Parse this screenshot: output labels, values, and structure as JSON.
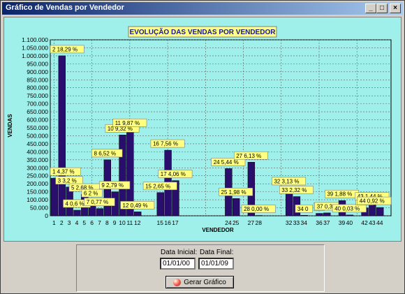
{
  "window": {
    "title": "Gráfico de Vendas por Vendedor",
    "minimize_glyph": "_",
    "maximize_glyph": "□",
    "close_glyph": "×"
  },
  "chart_data": {
    "type": "bar",
    "title": "EVOLUÇÃO DAS VENDAS POR VENDEDOR",
    "xlabel": "VENDEDOR",
    "ylabel": "VENDAS",
    "ylim": [
      0,
      1100000
    ],
    "yticks": [
      "0",
      "50.000",
      "100.000",
      "150.000",
      "200.000",
      "250.000",
      "300.000",
      "350.000",
      "400.000",
      "450.000",
      "500.000",
      "550.000",
      "600.000",
      "650.000",
      "700.000",
      "750.000",
      "800.000",
      "850.000",
      "900.000",
      "950.000",
      "1.000.000",
      "1.050.000",
      "1.100.000"
    ],
    "grid": true,
    "bar_color": "#2a0e6e",
    "label_color": "#ffff80",
    "categories": [
      "1",
      "2",
      "3",
      "4",
      "5",
      "6",
      "7",
      "8",
      "9",
      "10",
      "11",
      "12",
      "15",
      "16",
      "17",
      "24",
      "25",
      "27",
      "28",
      "32",
      "33",
      "34",
      "36",
      "37",
      "39",
      "40",
      "42",
      "43",
      "44"
    ],
    "values": [
      235000,
      1000000,
      180000,
      35000,
      135000,
      100000,
      45000,
      350000,
      150000,
      505000,
      540000,
      25000,
      145000,
      410000,
      220000,
      295000,
      108000,
      335000,
      2000,
      175000,
      120000,
      3000,
      15000,
      18000,
      95000,
      5000,
      50000,
      80000,
      52000
    ],
    "slot_index": [
      1,
      2,
      3,
      4,
      5,
      6,
      7,
      8,
      9,
      10,
      11,
      12,
      15,
      16,
      17,
      24,
      25,
      27,
      28,
      32,
      33,
      34,
      36,
      37,
      39,
      40,
      42,
      43,
      44
    ],
    "axis_ticks_shown": [
      "1",
      "2",
      "3",
      "4",
      "5",
      "6",
      "7",
      "8",
      "9",
      "10",
      "11",
      "12",
      "15",
      "16",
      "17",
      "24",
      "25",
      "27",
      "28",
      "32",
      "33",
      "34",
      "36",
      "37",
      "39",
      "40",
      "42",
      "43",
      "44"
    ],
    "data_labels": [
      "1 4,37 %",
      "2 18,29 %",
      "3 3,2 %",
      "4 0,6 %",
      "5 2,68 %",
      "6 2 %",
      "7 0,77 %",
      "8 6,52 %",
      "9 2,79 %",
      "10 9,32 %",
      "11 9,87 %",
      "12 0,49 %",
      "15 2,65 %",
      "16 7,56 %",
      "17 4,06 %",
      "24 5,44 %",
      "25 1,98 %",
      "27 6,13 %",
      "28 0,00 %",
      "32 3,13 %",
      "33 2,32 %",
      "34 0",
      "36",
      "37 0,3",
      "39 1,88 %",
      "40 0,03 %",
      "42 0",
      "43 1,44 %",
      "44 0,92 %"
    ]
  },
  "form": {
    "start_label": "Data Inicial:",
    "start_value": "01/01/00",
    "end_label": "Data Final:",
    "end_value": "01/01/09",
    "generate_button": "Gerar Gráfico"
  }
}
